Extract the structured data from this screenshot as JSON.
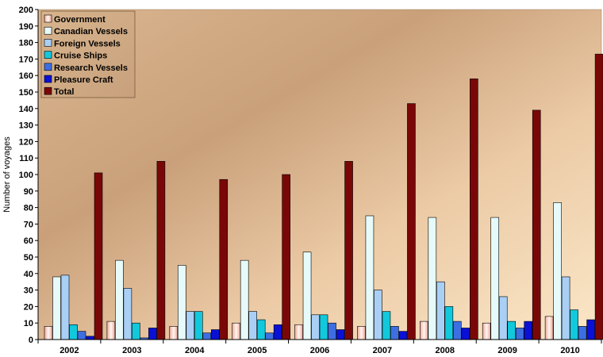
{
  "chart_data": {
    "type": "bar",
    "title": "",
    "xlabel": "",
    "ylabel": "Number of voyages",
    "ylim": [
      0,
      200
    ],
    "ytick_step": 10,
    "grid": false,
    "legend_position": "top-left",
    "categories": [
      "2002",
      "2003",
      "2004",
      "2005",
      "2006",
      "2007",
      "2008",
      "2009",
      "2010"
    ],
    "series": [
      {
        "name": "Government",
        "color": "#f3c6b8",
        "values": [
          8,
          11,
          8,
          10,
          9,
          8,
          11,
          10,
          14
        ]
      },
      {
        "name": "Canadian Vessels",
        "color": "#e6fafa",
        "values": [
          38,
          48,
          45,
          48,
          53,
          75,
          74,
          74,
          83
        ]
      },
      {
        "name": "Foreign Vessels",
        "color": "#a9cff5",
        "values": [
          39,
          31,
          17,
          17,
          15,
          30,
          35,
          26,
          38
        ]
      },
      {
        "name": "Cruise Ships",
        "color": "#12c8dc",
        "values": [
          9,
          10,
          17,
          12,
          15,
          17,
          20,
          11,
          18
        ]
      },
      {
        "name": "Research Vessels",
        "color": "#3d6fe3",
        "values": [
          5,
          1,
          4,
          4,
          10,
          8,
          11,
          7,
          8
        ]
      },
      {
        "name": "Pleasure Craft",
        "color": "#0a10d6",
        "values": [
          2,
          7,
          6,
          9,
          6,
          5,
          7,
          11,
          12
        ]
      },
      {
        "name": "Total",
        "color": "#7a0707",
        "values": [
          101,
          108,
          97,
          100,
          108,
          143,
          158,
          139,
          173
        ]
      }
    ],
    "y_ticks": [
      "0",
      "10",
      "20",
      "30",
      "40",
      "50",
      "60",
      "70",
      "80",
      "90",
      "100",
      "110",
      "120",
      "130",
      "140",
      "150",
      "160",
      "170",
      "180",
      "190",
      "200"
    ]
  }
}
